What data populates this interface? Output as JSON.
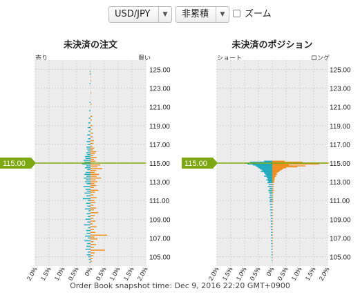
{
  "controls": {
    "pair": {
      "value": "USD/JPY",
      "arrow": "▼"
    },
    "mode": {
      "value": "非累積",
      "arrow": "▼"
    },
    "zoom": {
      "label": "ズーム",
      "checked": false
    }
  },
  "footer": "Order Book snapshot time: Dec 9, 2016 22:20 GMT+0900",
  "colors": {
    "buy": "#f08c1a",
    "sell": "#1eaabd",
    "current": "#7ea812",
    "grid": "#cfcfcf",
    "bg": "#ececec"
  },
  "current_price": {
    "value": 115.0,
    "label": "115.00"
  },
  "chart_data": [
    {
      "type": "bar",
      "orientation": "horizontal-diverging",
      "title": "未決済の注文",
      "left_label": "売り",
      "right_label": "買い",
      "ylim": [
        104,
        126
      ],
      "y_ticks": [
        "125.00",
        "123.00",
        "121.00",
        "119.00",
        "117.00",
        "115.00",
        "113.00",
        "111.00",
        "109.00",
        "107.00",
        "105.00"
      ],
      "x_ticks": [
        "2.0%",
        "1.5%",
        "1.0%",
        "0.5%",
        "0%",
        "0.5%",
        "1.0%",
        "1.5%",
        "2.0%"
      ],
      "xlim": [
        -2.0,
        2.0
      ],
      "bucket": 0.1,
      "series": [
        {
          "name": "売り",
          "color": "sell",
          "y": [
            124.8,
            124.5,
            123.5,
            121.5,
            120.6,
            119.8,
            119.3,
            118.8,
            118.4,
            118.0,
            117.6,
            117.3,
            117.0,
            116.7,
            116.5,
            116.3,
            116.1,
            115.9,
            115.7,
            115.5,
            115.3,
            115.1,
            114.9,
            114.7,
            114.5,
            114.3,
            114.0,
            113.8,
            113.6,
            113.4,
            113.2,
            113.0,
            112.8,
            112.5,
            112.2,
            112.0,
            111.8,
            111.5,
            111.2,
            111.0,
            110.7,
            110.4,
            110.1,
            109.9,
            109.6,
            109.3,
            109.0,
            108.7,
            108.4,
            108.1,
            107.8,
            107.5,
            107.2,
            107.0,
            106.7,
            106.4,
            106.1,
            105.8,
            105.5,
            105.2,
            105.0,
            104.7,
            104.4
          ],
          "values": [
            0.02,
            0.03,
            0.03,
            0.04,
            0.05,
            0.06,
            0.08,
            0.1,
            0.07,
            0.12,
            0.09,
            0.14,
            0.11,
            0.15,
            0.13,
            0.1,
            0.16,
            0.12,
            0.2,
            0.18,
            0.25,
            0.22,
            0.3,
            0.15,
            0.2,
            0.12,
            0.18,
            0.22,
            0.15,
            0.24,
            0.17,
            0.2,
            0.14,
            0.26,
            0.18,
            0.12,
            0.22,
            0.15,
            0.28,
            0.1,
            0.16,
            0.12,
            0.2,
            0.08,
            0.14,
            0.1,
            0.18,
            0.12,
            0.24,
            0.09,
            0.16,
            0.14,
            0.2,
            0.1,
            0.22,
            0.12,
            0.15,
            0.18,
            0.1,
            0.13,
            0.08,
            0.06,
            0.04
          ]
        },
        {
          "name": "買い",
          "color": "buy",
          "y": [
            124.6,
            124.2,
            123.8,
            122.5,
            121.3,
            120.0,
            119.6,
            119.0,
            118.6,
            118.2,
            117.8,
            117.4,
            117.1,
            116.8,
            116.6,
            116.4,
            116.2,
            116.0,
            115.8,
            115.6,
            115.4,
            115.2,
            114.8,
            114.6,
            114.4,
            114.2,
            114.0,
            113.8,
            113.6,
            113.4,
            113.2,
            113.0,
            112.8,
            112.6,
            112.4,
            112.1,
            111.9,
            111.6,
            111.3,
            111.0,
            110.8,
            110.5,
            110.2,
            110.0,
            109.7,
            109.4,
            109.1,
            108.8,
            108.5,
            108.2,
            107.9,
            107.6,
            107.3,
            107.1,
            106.9,
            106.6,
            106.3,
            106.0,
            105.7,
            105.4,
            105.1,
            104.8,
            104.5
          ],
          "values": [
            0.02,
            0.02,
            0.03,
            0.03,
            0.04,
            0.06,
            0.05,
            0.08,
            0.06,
            0.1,
            0.08,
            0.12,
            0.1,
            0.07,
            0.14,
            0.09,
            0.2,
            0.15,
            0.1,
            0.22,
            0.12,
            0.18,
            0.35,
            0.25,
            0.42,
            0.2,
            0.15,
            0.3,
            0.22,
            0.38,
            0.18,
            0.25,
            0.14,
            0.2,
            0.12,
            0.28,
            0.16,
            0.1,
            0.22,
            0.14,
            0.18,
            0.1,
            0.2,
            0.12,
            0.28,
            0.15,
            0.1,
            0.18,
            0.08,
            0.22,
            0.12,
            0.18,
            0.6,
            0.14,
            0.25,
            0.1,
            0.2,
            0.12,
            0.52,
            0.15,
            0.1,
            0.08,
            0.05
          ]
        }
      ]
    },
    {
      "type": "bar",
      "orientation": "horizontal-diverging",
      "title": "未決済のポジション",
      "left_label": "ショート",
      "right_label": "ロング",
      "ylim": [
        104,
        126
      ],
      "y_ticks": [
        "125.00",
        "123.00",
        "121.00",
        "119.00",
        "117.00",
        "115.00",
        "113.00",
        "111.00",
        "109.00",
        "107.00",
        "105.00"
      ],
      "x_ticks": [
        "2.0%",
        "1.5%",
        "1.0%",
        "0.5%",
        "0%",
        "0.5%",
        "1.0%",
        "1.5%",
        "2.0%"
      ],
      "xlim": [
        -2.0,
        2.0
      ],
      "bucket": 0.1,
      "series": [
        {
          "name": "ショート",
          "color": "sell",
          "y": [
            115.2,
            115.1,
            115.0,
            114.9,
            114.8,
            114.7,
            114.6,
            114.5,
            114.4,
            114.3,
            114.2,
            114.1,
            114.0,
            113.9,
            113.8,
            113.7,
            113.6,
            113.5,
            113.4,
            113.3,
            113.2,
            113.1,
            113.0,
            112.9,
            112.7,
            112.5,
            112.3,
            112.1,
            111.9,
            111.7,
            111.5,
            111.3,
            111.1,
            110.9,
            110.6,
            110.3,
            110.0,
            109.7,
            109.4,
            109.1,
            108.8,
            108.5,
            108.2,
            107.9,
            107.6,
            107.3,
            107.0,
            106.7,
            106.4,
            106.1,
            105.8,
            105.5,
            105.2,
            104.9,
            104.6
          ],
          "values": [
            0.3,
            0.8,
            1.0,
            0.9,
            0.7,
            0.6,
            0.55,
            0.5,
            0.45,
            0.4,
            0.35,
            0.42,
            0.3,
            0.28,
            0.25,
            0.22,
            0.3,
            0.2,
            0.18,
            0.16,
            0.22,
            0.15,
            0.14,
            0.18,
            0.12,
            0.16,
            0.1,
            0.14,
            0.12,
            0.1,
            0.09,
            0.12,
            0.08,
            0.1,
            0.09,
            0.07,
            0.08,
            0.06,
            0.07,
            0.05,
            0.06,
            0.05,
            0.06,
            0.05,
            0.04,
            0.05,
            0.04,
            0.05,
            0.04,
            0.03,
            0.04,
            0.03,
            0.03,
            0.02,
            0.02
          ]
        },
        {
          "name": "ロング",
          "color": "buy",
          "y": [
            115.2,
            115.1,
            115.0,
            114.9,
            114.8,
            114.7,
            114.6,
            114.5,
            114.4,
            114.3,
            114.2,
            114.1,
            114.0,
            113.9,
            113.8,
            113.7,
            113.6,
            113.5,
            113.4,
            113.3,
            113.2,
            113.1,
            113.0,
            112.9,
            112.7,
            112.5,
            112.3,
            112.1,
            111.9,
            111.7,
            111.5,
            111.3,
            111.1,
            110.9,
            110.6,
            110.3,
            110.0,
            109.7,
            109.4,
            109.1,
            108.8,
            108.5,
            108.2,
            107.9,
            107.6,
            107.3,
            107.0,
            106.7,
            106.4,
            106.1,
            105.8,
            105.5,
            105.2,
            104.9,
            104.6
          ],
          "values": [
            0.45,
            1.1,
            2.05,
            1.7,
            0.6,
            1.2,
            0.9,
            0.5,
            0.4,
            0.35,
            0.3,
            0.25,
            0.2,
            0.15,
            0.18,
            0.12,
            0.14,
            0.1,
            0.08,
            0.09,
            0.07,
            0.06,
            0.08,
            0.05,
            0.06,
            0.05,
            0.04,
            0.05,
            0.04,
            0.03,
            0.04,
            0.03,
            0.03,
            0.04,
            0.03,
            0.02,
            0.03,
            0.02,
            0.03,
            0.02,
            0.02,
            0.03,
            0.02,
            0.02,
            0.02,
            0.02,
            0.03,
            0.02,
            0.02,
            0.02,
            0.02,
            0.02,
            0.02,
            0.01,
            0.01
          ]
        }
      ]
    }
  ]
}
